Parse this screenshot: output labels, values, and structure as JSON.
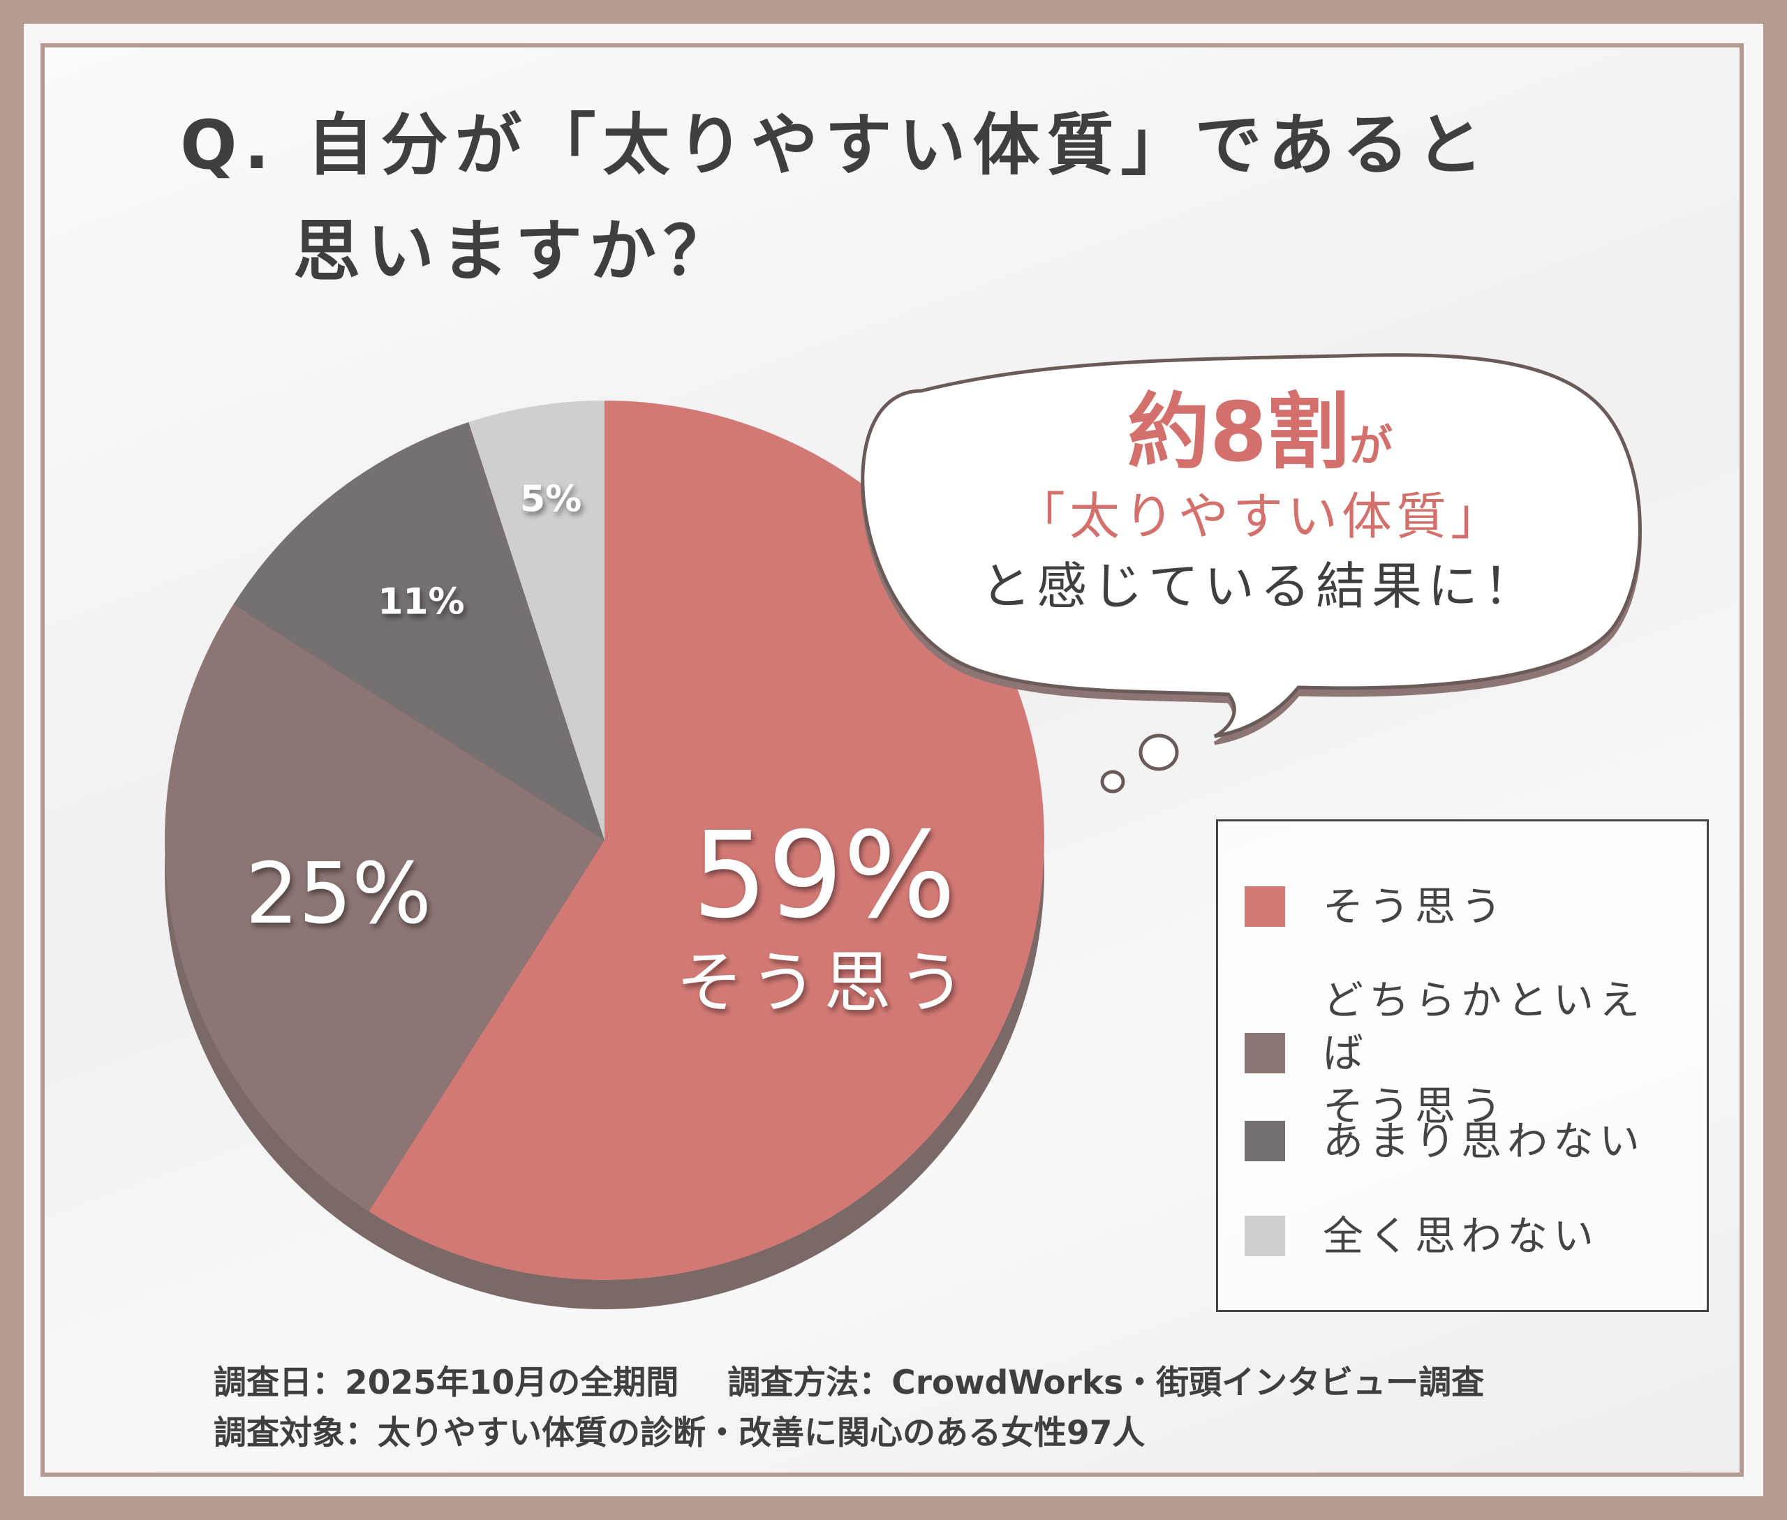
{
  "title": {
    "line1": "Q. 自分が「太りやすい体質」であると",
    "line2": "思いますか？"
  },
  "chart_data": {
    "type": "pie",
    "slices": [
      {
        "label": "そう思う",
        "value": 59,
        "display": "59%",
        "color": "#d27975"
      },
      {
        "label": "どちらかといえばそう思う",
        "value": 25,
        "display": "25%",
        "color": "#8c7573"
      },
      {
        "label": "あまり思わない",
        "value": 11,
        "display": "11%",
        "color": "#767070"
      },
      {
        "label": "全く思わない",
        "value": 5,
        "display": "5%",
        "color": "#cfcfcf"
      }
    ],
    "annotation": "そう思う"
  },
  "legend": {
    "items": [
      {
        "label": "そう思う",
        "color": "#d27975"
      },
      {
        "label": "どちらかといえば\nそう思う",
        "color": "#8c7573"
      },
      {
        "label": "あまり思わない",
        "color": "#767070"
      },
      {
        "label": "全く思わない",
        "color": "#cfcfcf"
      }
    ]
  },
  "bubble": {
    "highlight": "約8割",
    "particle": "が",
    "line2": "「太りやすい体質」",
    "line3": "と感じている結果に！"
  },
  "footer": {
    "date": "調査日：2025年10月の全期間",
    "method": "調査方法：CrowdWorks・街頭インタビュー調査",
    "target": "調査対象：太りやすい体質の診断・改善に関心のある女性97人"
  }
}
